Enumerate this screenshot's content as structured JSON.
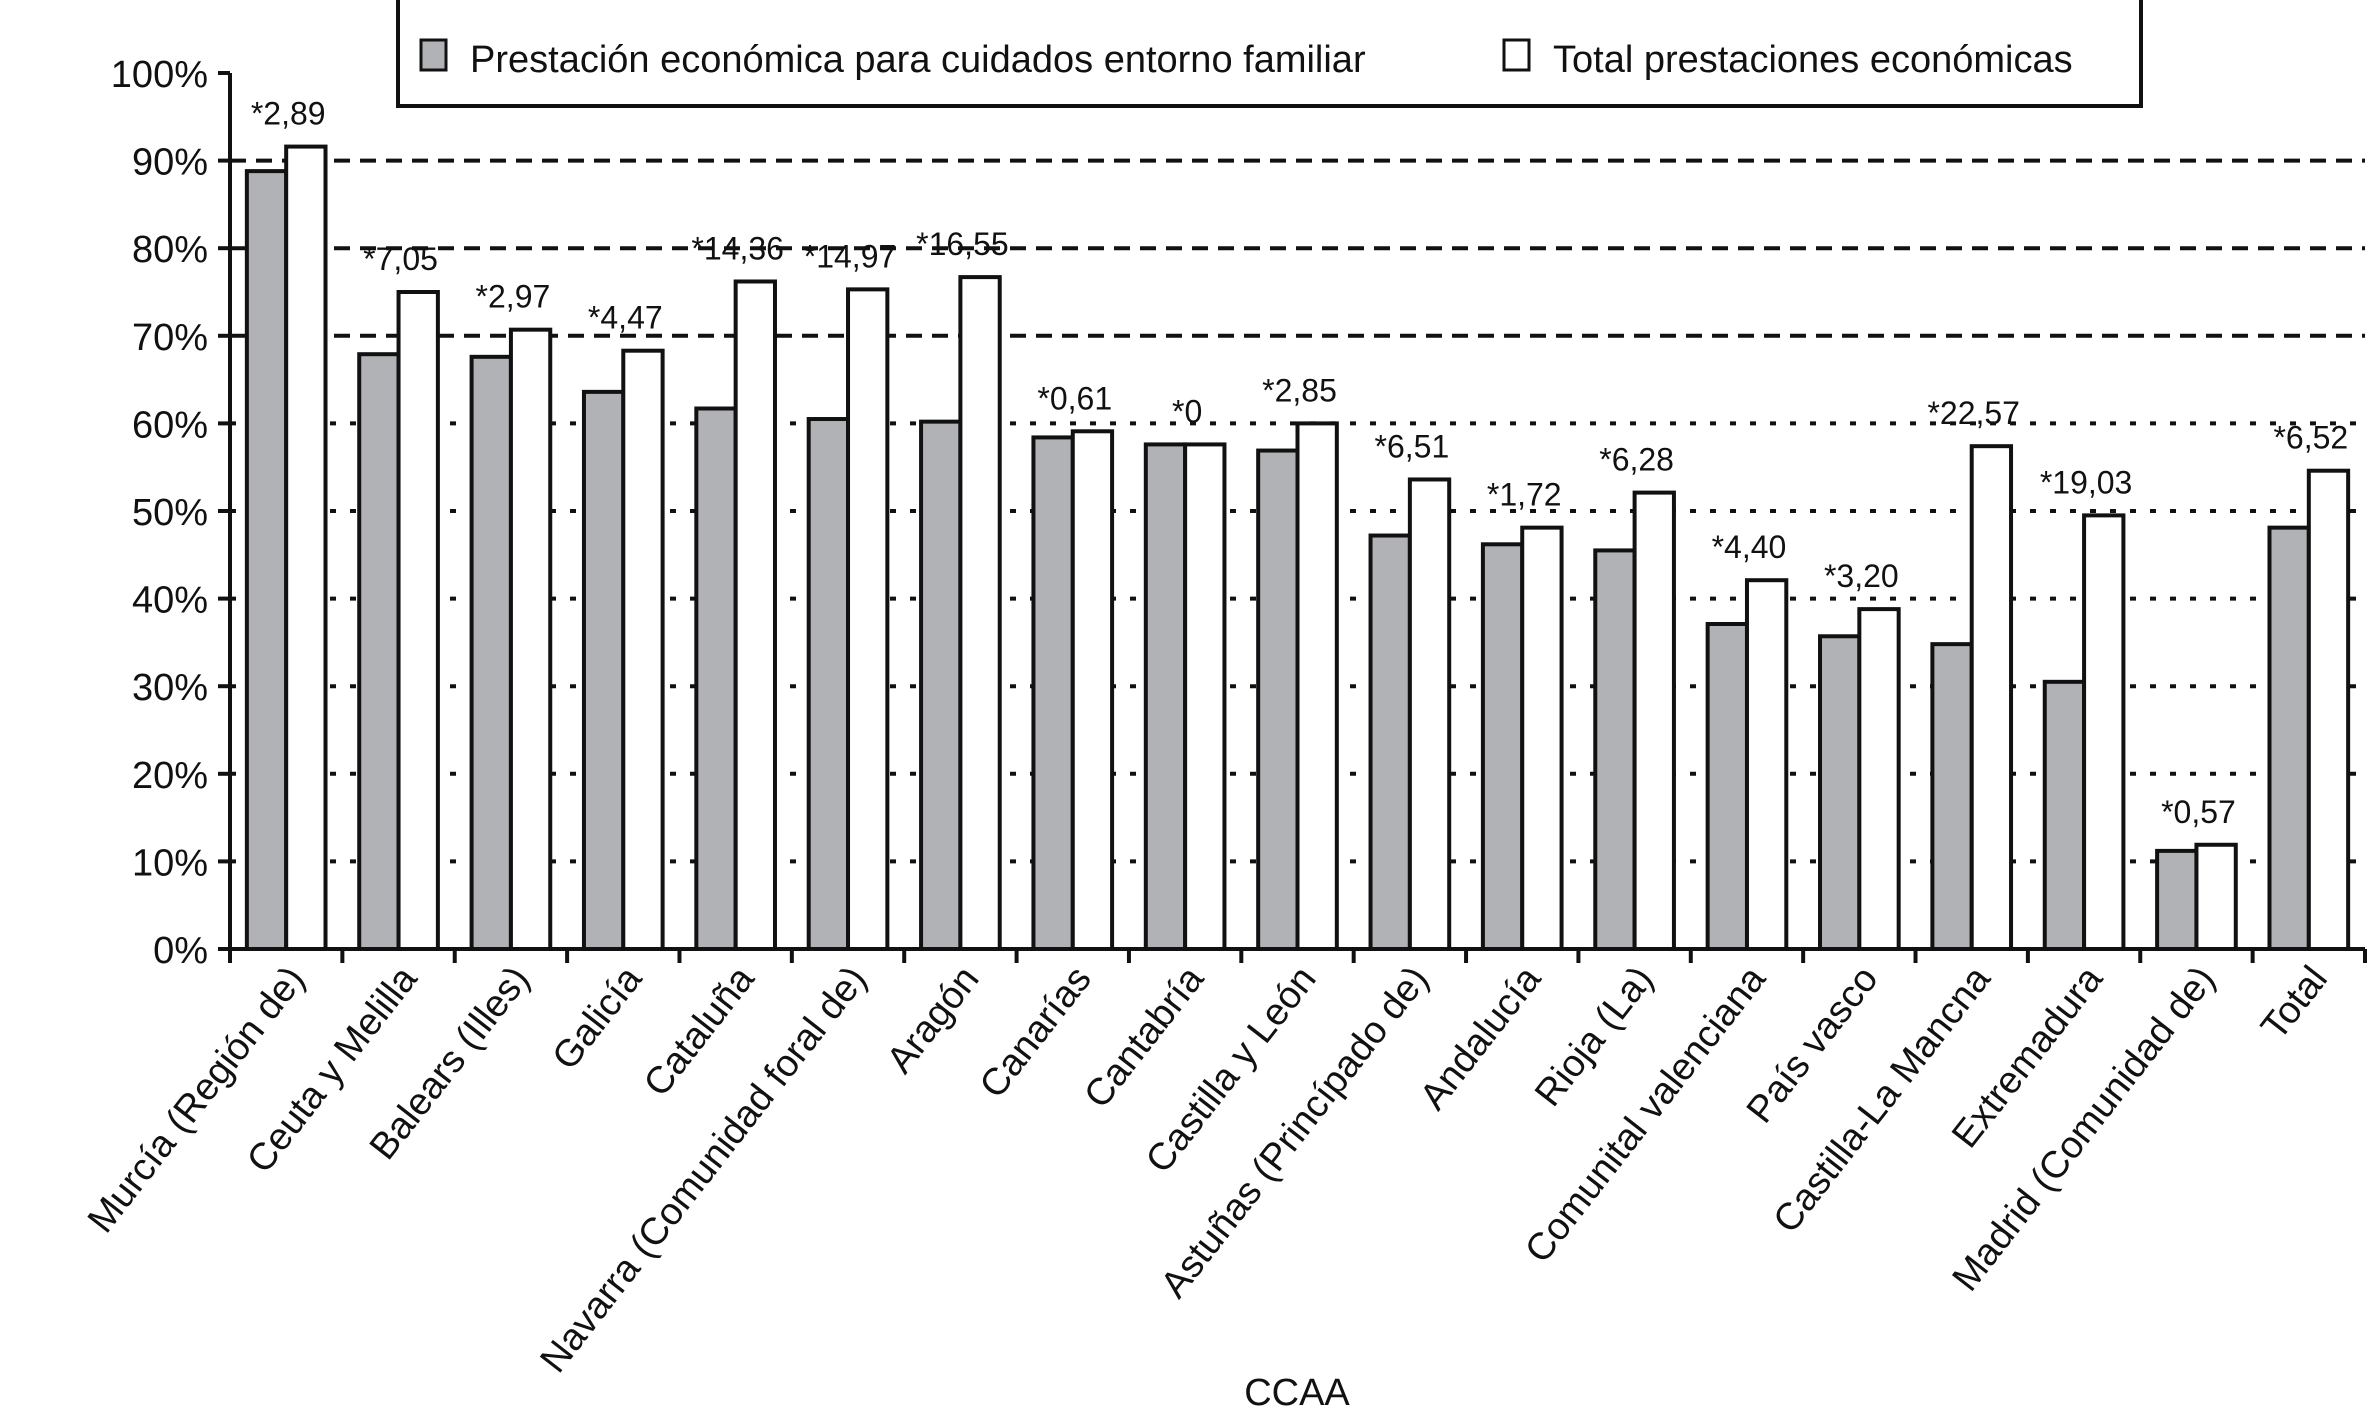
{
  "chart_data": {
    "type": "bar",
    "title": "",
    "xlabel": "CCAA",
    "ylabel": "",
    "ylim": [
      0,
      100
    ],
    "yticks": [
      "0%",
      "10%",
      "20%",
      "30%",
      "40%",
      "50%",
      "60%",
      "70%",
      "80%",
      "90%",
      "100%"
    ],
    "legend_position": "top",
    "categories": [
      "Murcía (Región de)",
      "Ceuta y Melilla",
      "Balears (Illes)",
      "Galicía",
      "Cataluña",
      "Navarra (Comunidad foral de)",
      "Aragón",
      "Canarías",
      "Cantabría",
      "Castilla y León",
      "Astuñas (Princípado de)",
      "Andalucía",
      "Rioja (La)",
      "Comunital valenciana",
      "País vasco",
      "Castilla-La Mancna",
      "Extremadura",
      "Madrid (Comunidad de)",
      "Total"
    ],
    "series": [
      {
        "name": "Prestación económica para cuidados entorno familiar",
        "color": "#b1b2b5",
        "values": [
          88.8,
          67.9,
          67.6,
          63.6,
          61.7,
          60.5,
          60.2,
          58.4,
          57.6,
          56.9,
          47.2,
          46.2,
          45.5,
          37.1,
          35.7,
          34.8,
          30.5,
          11.2,
          48.1
        ]
      },
      {
        "name": "Total prestaciones económicas",
        "color": "#ffffff",
        "values": [
          91.6,
          75.0,
          70.7,
          68.3,
          76.2,
          75.3,
          76.7,
          59.1,
          57.6,
          60.0,
          53.6,
          48.1,
          52.1,
          42.1,
          38.8,
          57.4,
          49.5,
          11.9,
          54.6
        ]
      }
    ],
    "annotations": [
      "*2,89",
      "*7,05",
      "*2,97",
      "*4,47",
      "*14,36",
      "*14,97",
      "*16,55",
      "*0,61",
      "*0",
      "*2,85",
      "*6,51",
      "*1,72",
      "*6,28",
      "*4,40",
      "*3,20",
      "*22,57",
      "*19,03",
      "*0,57",
      "*6,52"
    ],
    "grid": true
  }
}
